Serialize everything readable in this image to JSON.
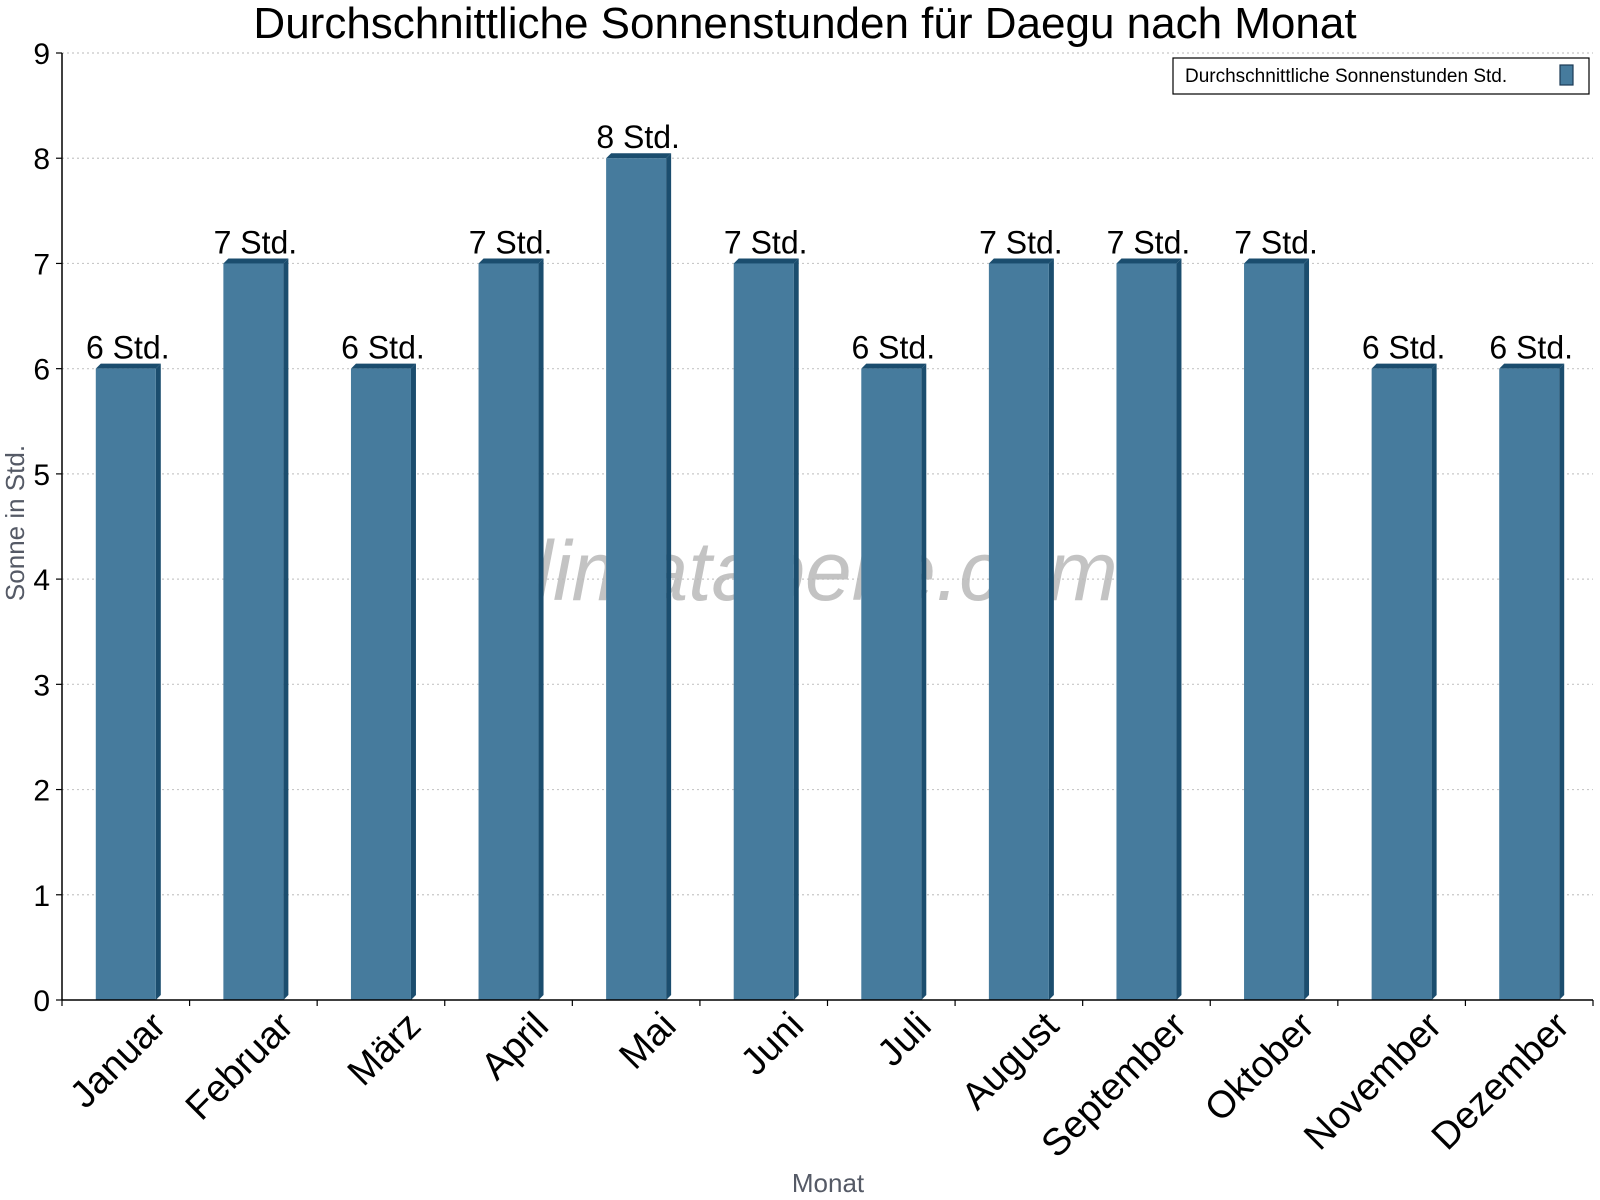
{
  "chart_data": {
    "type": "bar",
    "title": "Durchschnittliche Sonnenstunden für Daegu nach Monat",
    "xlabel": "Monat",
    "ylabel": "Sonne in Std.",
    "categories": [
      "Januar",
      "Februar",
      "März",
      "April",
      "Mai",
      "Juni",
      "Juli",
      "August",
      "September",
      "Oktober",
      "November",
      "Dezember"
    ],
    "series": [
      {
        "name": "Durchschnittliche Sonnenstunden Std.",
        "values": [
          6,
          7,
          6,
          7,
          8,
          7,
          6,
          7,
          7,
          7,
          6,
          6
        ],
        "labels": [
          "6 Std.",
          "7 Std.",
          "6 Std.",
          "7 Std.",
          "8 Std.",
          "7 Std.",
          "6 Std.",
          "7 Std.",
          "7 Std.",
          "7 Std.",
          "6 Std.",
          "6 Std."
        ]
      }
    ],
    "ylim": [
      0,
      9
    ],
    "yticks": [
      "0",
      "1",
      "2",
      "3",
      "4",
      "5",
      "6",
      "7",
      "8",
      "9"
    ],
    "grid": true,
    "legend_position": "top-right",
    "colors": {
      "bar": "#467b9d",
      "bar_shade": "#1b4d6e",
      "grid": "#c8c8c8"
    },
    "watermark": "klimatabelle.com"
  }
}
